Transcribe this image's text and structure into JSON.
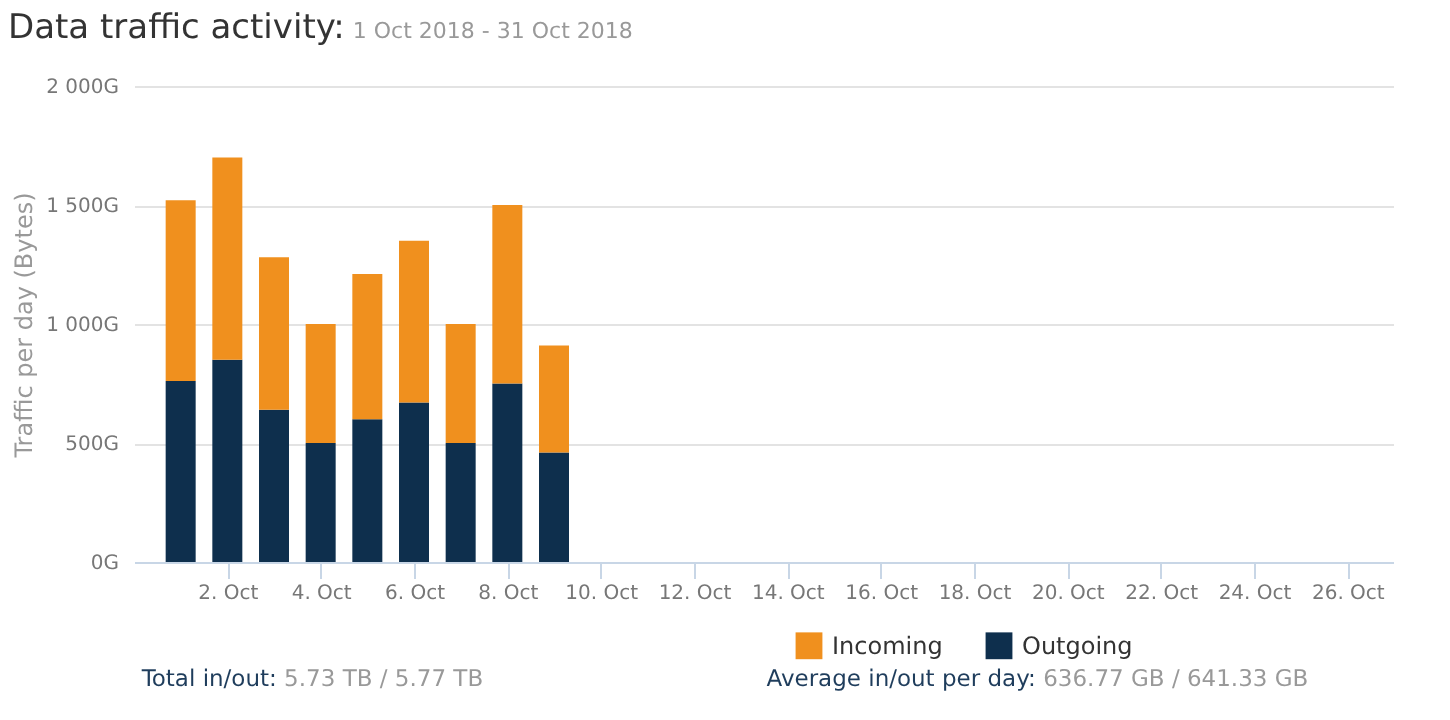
{
  "chart_data": {
    "type": "bar",
    "stacked": true,
    "title": "Data traffic activity:",
    "subtitle": "1 Oct 2018 - 31 Oct 2018",
    "ylabel": "Traffic per day (Bytes)",
    "x": [
      "2018-10-01",
      "2018-10-02",
      "2018-10-03",
      "2018-10-04",
      "2018-10-05",
      "2018-10-06",
      "2018-10-07",
      "2018-10-08",
      "2018-10-09"
    ],
    "series": [
      {
        "name": "Outgoing",
        "color": "#0e2f4d",
        "values": [
          760,
          850,
          640,
          500,
          600,
          670,
          500,
          750,
          460
        ]
      },
      {
        "name": "Incoming",
        "color": "#f0901e",
        "values": [
          760,
          850,
          640,
          500,
          610,
          680,
          500,
          750,
          450
        ]
      }
    ],
    "xlim": [
      "2018-09-30",
      "2018-10-27"
    ],
    "xticks": [
      {
        "value": "2018-10-02",
        "label": "2. Oct"
      },
      {
        "value": "2018-10-04",
        "label": "4. Oct"
      },
      {
        "value": "2018-10-06",
        "label": "6. Oct"
      },
      {
        "value": "2018-10-08",
        "label": "8. Oct"
      },
      {
        "value": "2018-10-10",
        "label": "10. Oct"
      },
      {
        "value": "2018-10-12",
        "label": "12. Oct"
      },
      {
        "value": "2018-10-14",
        "label": "14. Oct"
      },
      {
        "value": "2018-10-16",
        "label": "16. Oct"
      },
      {
        "value": "2018-10-18",
        "label": "18. Oct"
      },
      {
        "value": "2018-10-20",
        "label": "20. Oct"
      },
      {
        "value": "2018-10-22",
        "label": "22. Oct"
      },
      {
        "value": "2018-10-24",
        "label": "24. Oct"
      },
      {
        "value": "2018-10-26",
        "label": "26. Oct"
      }
    ],
    "ylim": [
      0,
      2000
    ],
    "yticks": [
      {
        "value": 0,
        "label": "0G"
      },
      {
        "value": 500,
        "label": "500G"
      },
      {
        "value": 1000,
        "label": "1 000G"
      },
      {
        "value": 1500,
        "label": "1 500G"
      },
      {
        "value": 2000,
        "label": "2 000G"
      }
    ],
    "grid": "y",
    "legend": "bottom",
    "annotations": [
      "Total in/out: 5.73 TB / 5.77 TB",
      "Average in/out per day: 636.77 GB / 641.33 GB"
    ]
  }
}
